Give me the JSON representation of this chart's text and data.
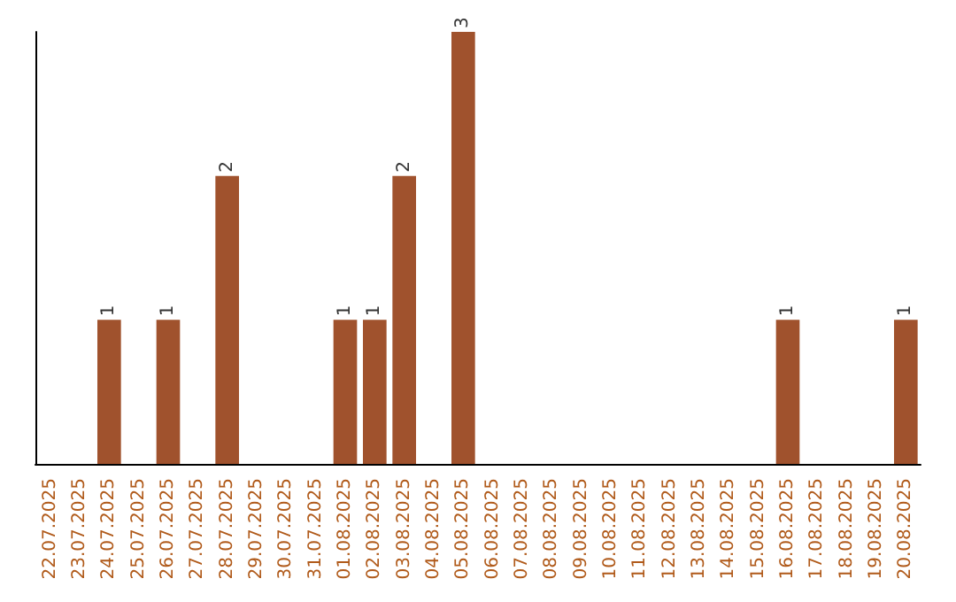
{
  "chart_data": {
    "type": "bar",
    "categories": [
      "22.07.2025",
      "23.07.2025",
      "24.07.2025",
      "25.07.2025",
      "26.07.2025",
      "27.07.2025",
      "28.07.2025",
      "29.07.2025",
      "30.07.2025",
      "31.07.2025",
      "01.08.2025",
      "02.08.2025",
      "03.08.2025",
      "04.08.2025",
      "05.08.2025",
      "06.08.2025",
      "07.08.2025",
      "08.08.2025",
      "09.08.2025",
      "10.08.2025",
      "11.08.2025",
      "12.08.2025",
      "13.08.2025",
      "14.08.2025",
      "15.08.2025",
      "16.08.2025",
      "17.08.2025",
      "18.08.2025",
      "19.08.2025",
      "20.08.2025"
    ],
    "values": [
      0,
      0,
      1,
      0,
      1,
      0,
      2,
      0,
      0,
      0,
      1,
      1,
      2,
      0,
      3,
      0,
      0,
      0,
      0,
      0,
      0,
      0,
      0,
      0,
      0,
      1,
      0,
      0,
      0,
      1
    ],
    "value_labels": [
      null,
      null,
      "1",
      null,
      "1",
      null,
      "2",
      null,
      null,
      null,
      "1",
      "1",
      "2",
      null,
      "3",
      null,
      null,
      null,
      null,
      null,
      null,
      null,
      null,
      null,
      null,
      "1",
      null,
      null,
      null,
      "1"
    ],
    "color": "#a0522d",
    "tick_labels": "x"
  }
}
